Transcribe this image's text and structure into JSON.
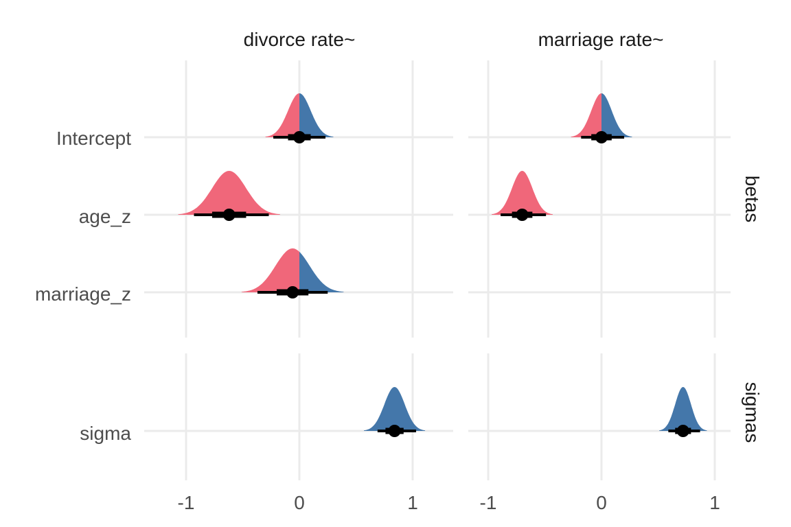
{
  "chart_data": {
    "type": "halfeye",
    "columns": [
      "divorce rate~",
      "marriage rate~"
    ],
    "row_groups": [
      {
        "name": "betas",
        "rows": [
          "Intercept",
          "age_z",
          "marriage_z"
        ]
      },
      {
        "name": "sigmas",
        "rows": [
          "sigma"
        ]
      }
    ],
    "x_ticks": [
      -1,
      0,
      1
    ],
    "x_tick_labels": [
      "-1",
      "0",
      "1"
    ],
    "xlim": [
      -1.4,
      1.14
    ],
    "colors": {
      "negative": "#f0677a",
      "positive": "#4477aa",
      "point": "#000000"
    },
    "estimates": [
      {
        "column": "divorce rate~",
        "row": "Intercept",
        "median": 0.0,
        "sd": 0.1,
        "interval_66": [
          -0.1,
          0.1
        ],
        "interval_95": [
          -0.23,
          0.23
        ]
      },
      {
        "column": "divorce rate~",
        "row": "age_z",
        "median": -0.62,
        "sd": 0.15,
        "interval_66": [
          -0.77,
          -0.47
        ],
        "interval_95": [
          -0.93,
          -0.27
        ]
      },
      {
        "column": "divorce rate~",
        "row": "marriage_z",
        "median": -0.06,
        "sd": 0.15,
        "interval_66": [
          -0.2,
          0.08
        ],
        "interval_95": [
          -0.37,
          0.25
        ]
      },
      {
        "column": "divorce rate~",
        "row": "sigma",
        "median": 0.84,
        "sd": 0.09,
        "interval_66": [
          0.76,
          0.92
        ],
        "interval_95": [
          0.69,
          1.03
        ]
      },
      {
        "column": "marriage rate~",
        "row": "Intercept",
        "median": 0.0,
        "sd": 0.09,
        "interval_66": [
          -0.09,
          0.09
        ],
        "interval_95": [
          -0.18,
          0.2
        ]
      },
      {
        "column": "marriage rate~",
        "row": "age_z",
        "median": -0.7,
        "sd": 0.09,
        "interval_66": [
          -0.79,
          -0.61
        ],
        "interval_95": [
          -0.89,
          -0.49
        ]
      },
      {
        "column": "marriage rate~",
        "row": "marriage_z",
        "median": null,
        "sd": null,
        "interval_66": null,
        "interval_95": null
      },
      {
        "column": "marriage rate~",
        "row": "sigma",
        "median": 0.72,
        "sd": 0.07,
        "interval_66": [
          0.65,
          0.79
        ],
        "interval_95": [
          0.59,
          0.87
        ]
      }
    ]
  }
}
